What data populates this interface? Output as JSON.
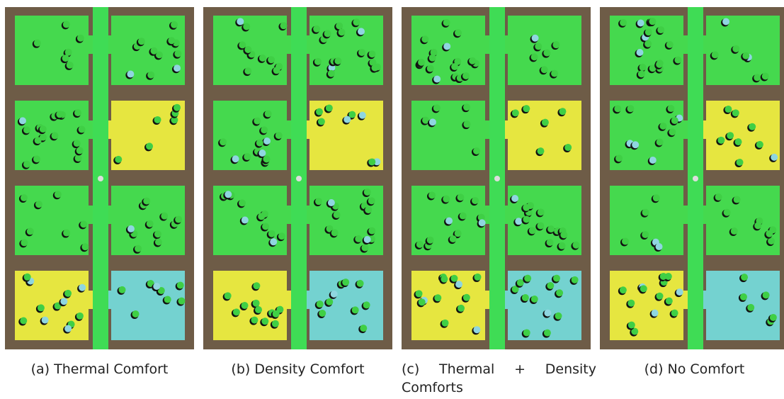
{
  "figure": {
    "panels": [
      {
        "caption": "(a) Thermal Comfort"
      },
      {
        "caption": "(b) Density Comfort"
      },
      {
        "caption": "(c) Thermal + Density Comforts"
      },
      {
        "caption": "(d) No Comfort"
      }
    ]
  }
}
